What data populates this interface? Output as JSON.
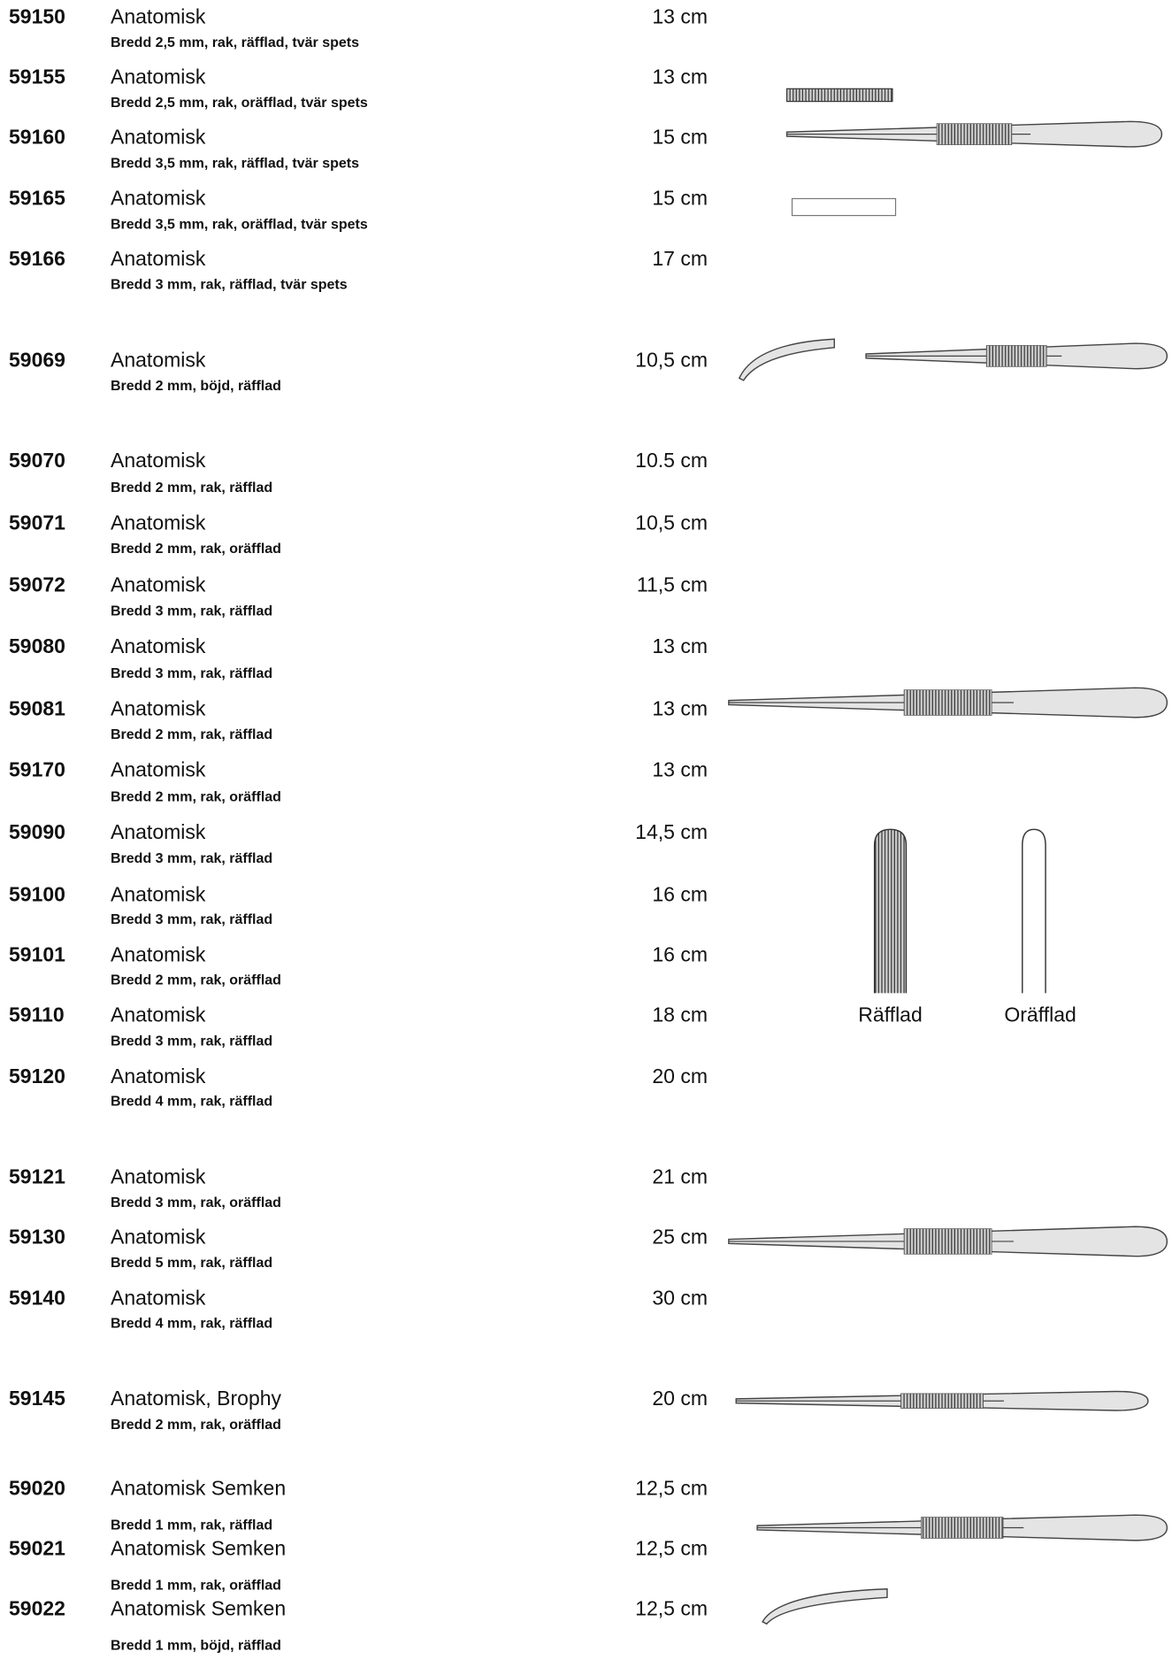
{
  "rows": [
    {
      "code": "59150",
      "name": "Anatomisk",
      "size": "13 cm",
      "description": "Bredd 2,5 mm, rak, räfflad, tvär spets"
    },
    {
      "code": "59155",
      "name": "Anatomisk",
      "size": "13 cm",
      "description": "Bredd 2,5 mm, rak, oräfflad, tvär spets"
    },
    {
      "code": "59160",
      "name": "Anatomisk",
      "size": "15 cm",
      "description": "Bredd 3,5 mm, rak, räfflad, tvär spets"
    },
    {
      "code": "59165",
      "name": "Anatomisk",
      "size": "15 cm",
      "description": "Bredd 3,5 mm, rak, oräfflad, tvär spets"
    },
    {
      "code": "59166",
      "name": "Anatomisk",
      "size": "17 cm",
      "description": "Bredd 3 mm, rak, räfflad, tvär spets"
    },
    {
      "code": "59069",
      "name": "Anatomisk",
      "size": "10,5 cm",
      "description": "Bredd 2 mm, böjd, räfflad"
    },
    {
      "code": "59070",
      "name": "Anatomisk",
      "size": "10.5 cm",
      "description": "Bredd 2 mm, rak, räfflad"
    },
    {
      "code": "59071",
      "name": "Anatomisk",
      "size": "10,5 cm",
      "description": "Bredd 2 mm, rak, oräfflad"
    },
    {
      "code": "59072",
      "name": "Anatomisk",
      "size": "11,5 cm",
      "description": "Bredd 3 mm, rak, räfflad"
    },
    {
      "code": "59080",
      "name": "Anatomisk",
      "size": "13 cm",
      "description": "Bredd 3 mm, rak, räfflad"
    },
    {
      "code": "59081",
      "name": "Anatomisk",
      "size": "13 cm",
      "description": "Bredd 2 mm, rak, räfflad"
    },
    {
      "code": "59170",
      "name": "Anatomisk",
      "size": "13 cm",
      "description": "Bredd 2 mm, rak, oräfflad"
    },
    {
      "code": "59090",
      "name": "Anatomisk",
      "size": "14,5 cm",
      "description": "Bredd 3 mm, rak, räfflad"
    },
    {
      "code": "59100",
      "name": "Anatomisk",
      "size": "16 cm",
      "description": "Bredd 3 mm, rak, räfflad"
    },
    {
      "code": "59101",
      "name": "Anatomisk",
      "size": "16 cm",
      "description": "Bredd 2 mm, rak, oräfflad"
    },
    {
      "code": "59110",
      "name": "Anatomisk",
      "size": "18 cm",
      "description": "Bredd 3 mm, rak, räfflad"
    },
    {
      "code": "59120",
      "name": "Anatomisk",
      "size": "20 cm",
      "description": "Bredd 4 mm, rak, räfflad"
    },
    {
      "code": "59121",
      "name": "Anatomisk",
      "size": "21 cm",
      "description": "Bredd 3 mm, rak, oräfflad"
    },
    {
      "code": "59130",
      "name": "Anatomisk",
      "size": "25 cm",
      "description": "Bredd 5 mm, rak, räfflad"
    },
    {
      "code": "59140",
      "name": "Anatomisk",
      "size": "30 cm",
      "description": "Bredd 4 mm, rak, räfflad"
    },
    {
      "code": "59145",
      "name": "Anatomisk, Brophy",
      "size": "20 cm",
      "description": "Bredd 2 mm, rak, oräfflad"
    },
    {
      "code": "59020",
      "name": "Anatomisk Semken",
      "size": "12,5 cm",
      "description": "Bredd 1 mm, rak, räfflad"
    },
    {
      "code": "59021",
      "name": "Anatomisk Semken",
      "size": "12,5 cm",
      "description": "Bredd 1 mm, rak, oräfflad"
    },
    {
      "code": "59022",
      "name": "Anatomisk Semken",
      "size": "12,5 cm",
      "description": "Bredd 1 mm, böjd, räfflad"
    }
  ],
  "labels": [
    "Räfflad",
    "Oräfflad"
  ]
}
